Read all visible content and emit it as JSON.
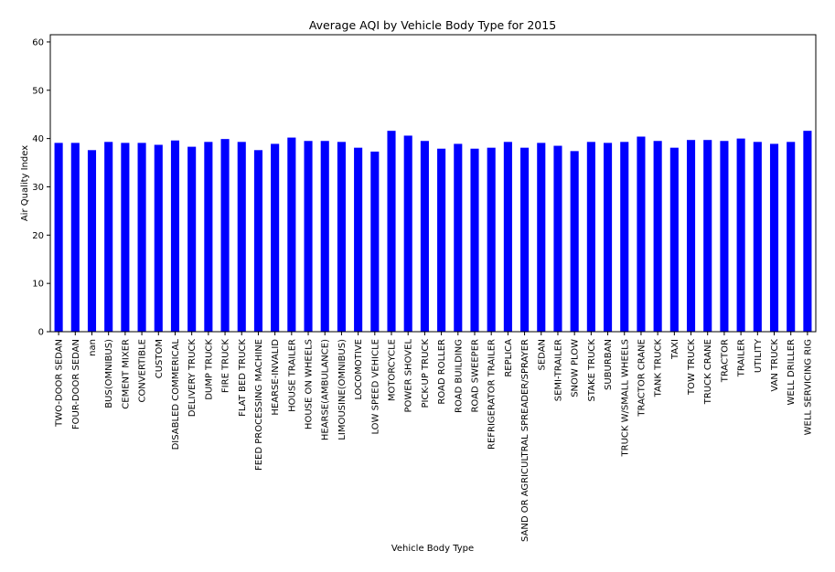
{
  "chart_data": {
    "type": "bar",
    "title": "Average AQI by Vehicle Body Type for 2015",
    "xlabel": "Vehicle Body Type",
    "ylabel": "Air Quality Index",
    "ylim": [
      0,
      61.5
    ],
    "yticks": [
      0,
      10,
      20,
      30,
      40,
      50,
      60
    ],
    "grid": false,
    "legend": "none",
    "bar_color": "#0000ff",
    "categories": [
      "TWO-DOOR SEDAN",
      "FOUR-DOOR SEDAN",
      "nan",
      "BUS(OMNIBUS)",
      "CEMENT MIXER",
      "CONVERTIBLE",
      "CUSTOM",
      "DISABLED COMMERICAL",
      "DELIVERY TRUCK",
      "DUMP TRUCK",
      "FIRE TRUCK",
      "FLAT BED TRUCK",
      "FEED PROCESSING MACHINE",
      "HEARSE-INVALID",
      "HOUSE TRAILER",
      "HOUSE ON WHEELS",
      "HEARSE(AMBULANCE)",
      "LIMOUSINE(OMNIBUS)",
      "LOCOMOTIVE",
      "LOW SPEED VEHICLE",
      "MOTORCYCLE",
      "POWER SHOVEL",
      "PICK-UP TRUCK",
      "ROAD ROLLER",
      "ROAD BUILDING",
      "ROAD SWEEPER",
      "REFRIGERATOR TRAILER",
      "REPLICA",
      "SAND OR AGRICULTRAL SPREADER/SPRAYER",
      "SEDAN",
      "SEMI-TRAILER",
      "SNOW PLOW",
      "STAKE TRUCK",
      "SUBURBAN",
      "TRUCK W/SMALL WHEELS",
      "TRACTOR CRANE",
      "TANK TRUCK",
      "TAXI",
      "TOW TRUCK",
      "TRUCK CRANE",
      "TRACTOR",
      "TRAILER",
      "UTILITY",
      "VAN TRUCK",
      "WELL DRILLER",
      "WELL SERVICING RIG"
    ],
    "values": [
      39.1,
      39.1,
      37.6,
      39.3,
      39.1,
      39.1,
      38.7,
      39.6,
      38.3,
      39.3,
      39.9,
      39.3,
      37.6,
      38.9,
      40.2,
      39.5,
      39.5,
      39.3,
      38.1,
      37.3,
      41.6,
      40.6,
      39.5,
      37.9,
      38.9,
      37.9,
      38.1,
      39.3,
      38.1,
      39.1,
      38.5,
      37.4,
      39.3,
      39.1,
      39.3,
      40.4,
      39.5,
      38.1,
      39.7,
      39.7,
      39.5,
      40.0,
      39.3,
      38.9,
      39.3,
      41.6
    ]
  }
}
